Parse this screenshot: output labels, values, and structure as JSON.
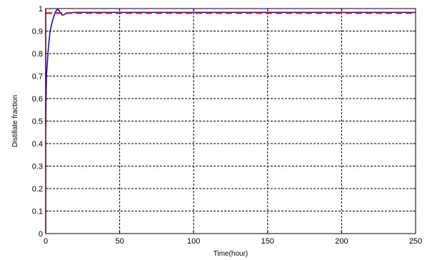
{
  "chart_data": {
    "type": "line",
    "xlabel": "Time(hour)",
    "ylabel": "Distillate fraction",
    "xlim": [
      0,
      250
    ],
    "ylim": [
      0,
      1
    ],
    "x_ticks": [
      0,
      50,
      100,
      150,
      200,
      250
    ],
    "x_tick_labels": [
      "0",
      "50",
      "100",
      "150",
      "200",
      "250"
    ],
    "y_ticks": [
      0,
      0.1,
      0.2,
      0.3,
      0.4,
      0.5,
      0.6,
      0.7,
      0.8,
      0.9,
      1
    ],
    "y_tick_labels": [
      "0",
      "0.1",
      "0.2",
      "0.3",
      "0.4",
      "0.5",
      "0.6",
      "0.7",
      "0.8",
      "0.9",
      "1"
    ],
    "grid": true,
    "series": [
      {
        "color": "#0000ff",
        "style": "solid",
        "x": [
          0,
          0.5,
          1,
          1.5,
          2,
          2.5,
          3,
          4,
          5,
          6,
          7,
          8,
          9,
          10,
          11,
          12,
          13,
          15,
          20,
          30,
          50,
          100,
          150,
          200,
          250
        ],
        "y": [
          0.48,
          0.7,
          0.75,
          0.8,
          0.84,
          0.87,
          0.9,
          0.93,
          0.955,
          0.975,
          0.99,
          0.997,
          0.992,
          0.98,
          0.972,
          0.972,
          0.976,
          0.98,
          0.983,
          0.983,
          0.983,
          0.983,
          0.983,
          0.983,
          0.983
        ]
      },
      {
        "color": "#dd0000",
        "style": "dashed",
        "x": [
          0,
          250
        ],
        "y": [
          0.98,
          0.98
        ]
      },
      {
        "color": "#dd0000",
        "style": "solid",
        "x": [
          0,
          0
        ],
        "y": [
          0,
          1
        ]
      }
    ]
  }
}
